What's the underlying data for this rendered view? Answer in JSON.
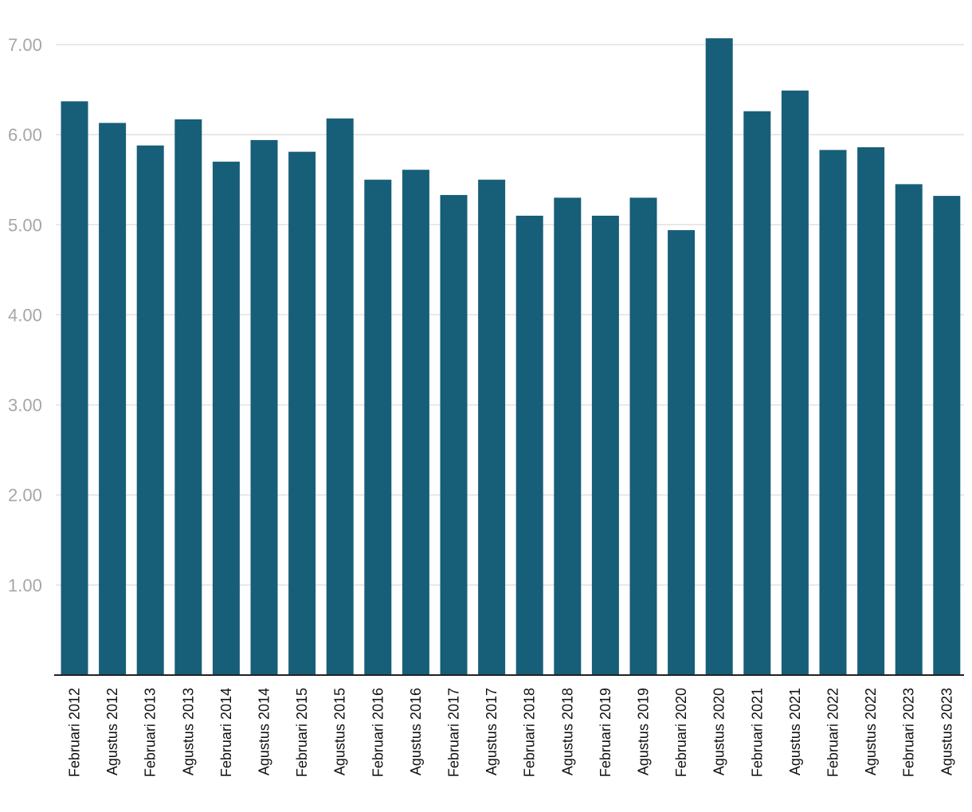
{
  "chart_data": {
    "type": "bar",
    "title": "",
    "xlabel": "",
    "ylabel": "",
    "ylim": [
      0,
      7.0
    ],
    "yticks": [
      1.0,
      2.0,
      3.0,
      4.0,
      5.0,
      6.0,
      7.0
    ],
    "ytick_labels": [
      "1.00",
      "2.00",
      "3.00",
      "4.00",
      "5.00",
      "6.00",
      "7.00"
    ],
    "grid": true,
    "bar_color": "#175e79",
    "categories": [
      "Februari 2012",
      "Agustus 2012",
      "Februari 2013",
      "Agustus 2013",
      "Februari 2014",
      "Agustus 2014",
      "Februari 2015",
      "Agustus 2015",
      "Februari 2016",
      "Agustus 2016",
      "Februari 2017",
      "Agustus 2017",
      "Februari 2018",
      "Agustus 2018",
      "Februari 2019",
      "Agustus 2019",
      "Februari 2020",
      "Agustus 2020",
      "Februari 2021",
      "Agustus 2021",
      "Februari 2022",
      "Agustus 2022",
      "Februari 2023",
      "Agustus 2023"
    ],
    "values": [
      6.37,
      6.13,
      5.88,
      6.17,
      5.7,
      5.94,
      5.81,
      6.18,
      5.5,
      5.61,
      5.33,
      5.5,
      5.1,
      5.3,
      5.1,
      5.3,
      4.94,
      7.07,
      6.26,
      6.49,
      5.83,
      5.86,
      5.45,
      5.32
    ]
  }
}
